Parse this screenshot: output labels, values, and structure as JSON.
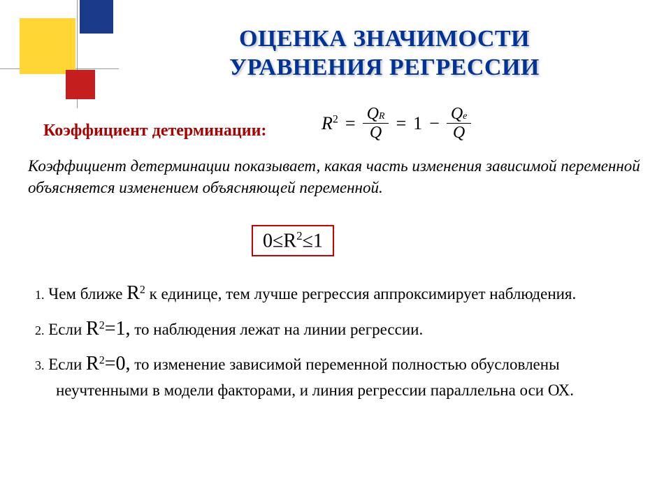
{
  "title_line1": "ОЦЕНКА ЗНАЧИМОСТИ",
  "title_line2": "УРАВНЕНИЯ РЕГРЕССИИ",
  "subheading": "Коэффициент детерминации:",
  "formula": {
    "lhs": "R",
    "lhs_sup": "2",
    "eq1": "=",
    "frac1_num_sym": "Q",
    "frac1_num_sub": "R",
    "frac1_den": "Q",
    "eq2": "=",
    "one": "1",
    "minus": "−",
    "frac2_num_sym": "Q",
    "frac2_num_sub": "e",
    "frac2_den": "Q"
  },
  "explanation": "Коэффициент детерминации показывает, какая часть изменения зависимой переменной объясняется изменением объясняющей переменной.",
  "range": {
    "zero": "0",
    "le1": "≤",
    "R": "R",
    "sup": "2",
    "le2": "≤",
    "one": "1"
  },
  "list": {
    "item1_num": "1.",
    "item1_a": " Чем ближе ",
    "item1_r": "R",
    "item1_sup": "2",
    "item1_b": " к единице, тем лучше регрессия аппроксимирует наблюдения.",
    "item2_num": "2.",
    "item2_a": " Если ",
    "item2_r": "R",
    "item2_sup": "2",
    "item2_eq": "=1,",
    "item2_b": " то наблюдения лежат на линии регрессии.",
    "item3_num": "3.",
    "item3_a": " Если ",
    "item3_r": "R",
    "item3_sup": "2",
    "item3_eq": "=0,",
    "item3_b": " то изменение зависимой переменной полностью обусловлены неучтенными в модели факторами, и линия регрессии параллельна оси ОХ."
  },
  "colors": {
    "title": "#003399",
    "subheading": "#aa0000",
    "range_border": "#cc0000",
    "deco_yellow": "#ffd633",
    "deco_blue": "#1a3a8a",
    "deco_red": "#c41e1e"
  }
}
